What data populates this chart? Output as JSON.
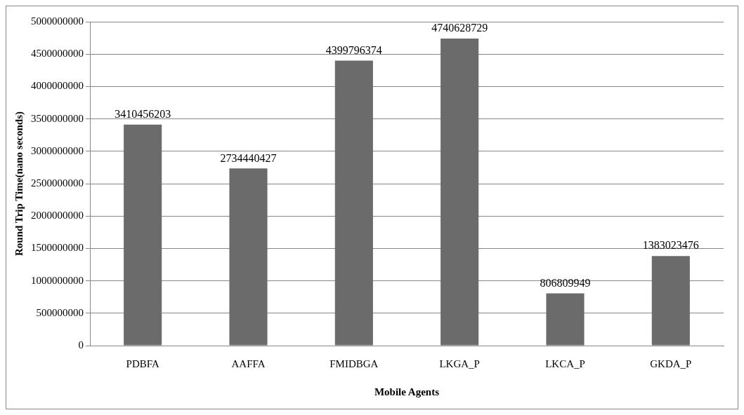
{
  "chart_data": {
    "type": "bar",
    "xlabel": "Mobile Agents",
    "ylabel": "Round Trip Time(nano seconds)",
    "categories": [
      "PDBFA",
      "AAFFA",
      "FMIDBGA",
      "LKGA_P",
      "LKCA_P",
      "GKDA_P"
    ],
    "values": [
      3410456203,
      2734440427,
      4399796374,
      4740628729,
      806809949,
      1383023476
    ],
    "color": "#6b6b6b",
    "ylim": [
      0,
      5000000000
    ],
    "yticks": [
      0,
      500000000,
      1000000000,
      1500000000,
      2000000000,
      2500000000,
      3000000000,
      3500000000,
      4000000000,
      4500000000,
      5000000000
    ],
    "grid": "y",
    "data_labels": true
  }
}
